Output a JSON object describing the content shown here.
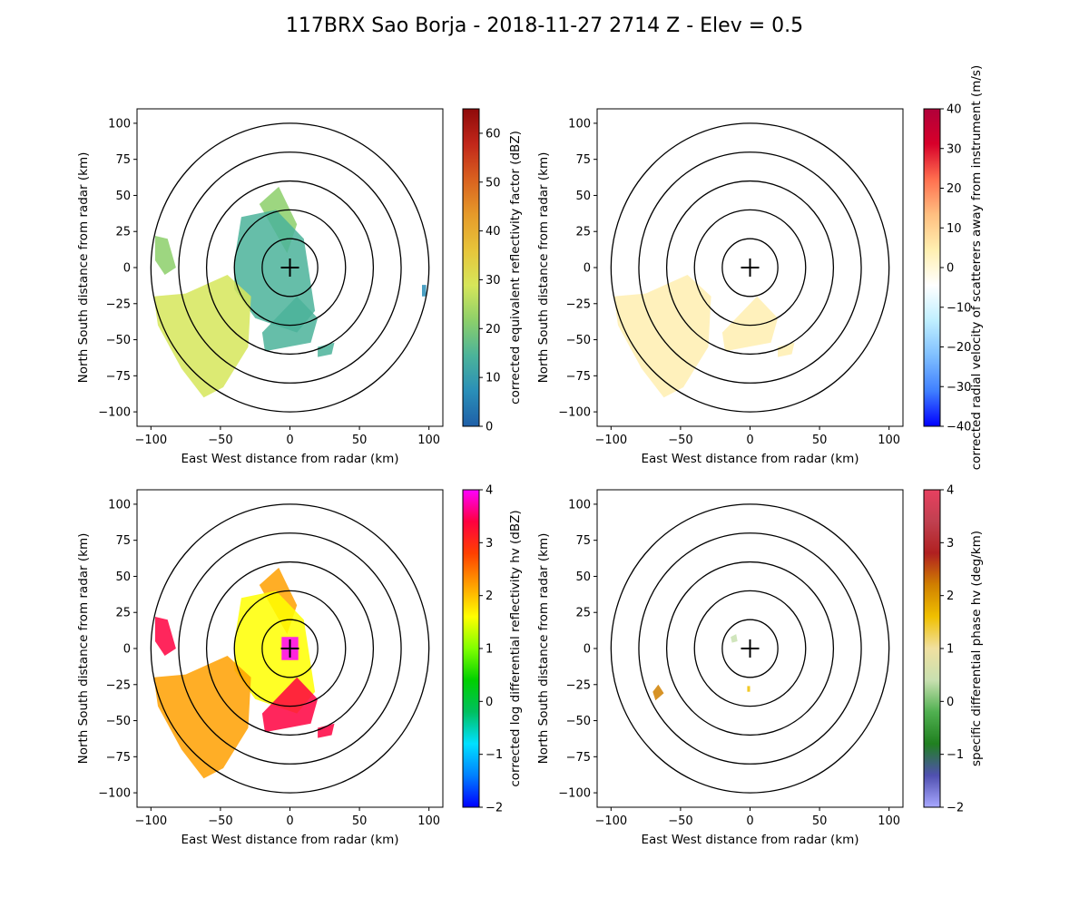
{
  "title": "117BRX Sao Borja - 2018-11-27 2714 Z -  Elev = 0.5",
  "chart_data": [
    {
      "type": "heatmap",
      "panel": "top-left",
      "xlabel": "East West distance from radar (km)",
      "ylabel": "North South distance from radar (km)",
      "xlim": [
        -110,
        110
      ],
      "ylim": [
        -110,
        110
      ],
      "xticks": [
        -100,
        -50,
        0,
        50,
        100
      ],
      "yticks": [
        -100,
        -75,
        -50,
        -25,
        0,
        25,
        50,
        75,
        100
      ],
      "range_rings_km": [
        20,
        40,
        60,
        80,
        100
      ],
      "radar_marker": [
        0,
        0
      ],
      "colorbar": {
        "label": "corrected equivalent reflectivity factor (dBZ)",
        "min": 0,
        "max": 65,
        "ticks": [
          0,
          10,
          20,
          30,
          40,
          50,
          60
        ],
        "colors": [
          "#1f5fa8",
          "#2a8fb8",
          "#4bb39a",
          "#8ccf6a",
          "#d6e65a",
          "#e7c43a",
          "#e59a2a",
          "#d9611f",
          "#c1271a",
          "#8e0a0a"
        ]
      },
      "echoes": [
        {
          "name": "northeast-storm-arm",
          "value": 20,
          "points": [
            [
              -5,
              15
            ],
            [
              -22,
              44
            ],
            [
              -8,
              56
            ],
            [
              5,
              30
            ],
            [
              -2,
              10
            ]
          ]
        },
        {
          "name": "central-echo",
          "value": 18,
          "points": [
            [
              -40,
              5
            ],
            [
              -35,
              35
            ],
            [
              -10,
              40
            ],
            [
              10,
              20
            ],
            [
              18,
              -30
            ],
            [
              5,
              -45
            ],
            [
              -25,
              -35
            ],
            [
              -40,
              -15
            ]
          ]
        },
        {
          "name": "southeast-tail",
          "value": 15,
          "points": [
            [
              5,
              -20
            ],
            [
              20,
              -35
            ],
            [
              15,
              -52
            ],
            [
              -18,
              -58
            ],
            [
              -20,
              -45
            ]
          ]
        },
        {
          "name": "southwest-band",
          "value": 28,
          "points": [
            [
              -98,
              -20
            ],
            [
              -75,
              -18
            ],
            [
              -45,
              -5
            ],
            [
              -28,
              -20
            ],
            [
              -30,
              -55
            ],
            [
              -48,
              -83
            ],
            [
              -62,
              -90
            ],
            [
              -78,
              -70
            ],
            [
              -95,
              -40
            ]
          ]
        },
        {
          "name": "west-cells",
          "value": 24,
          "points": [
            [
              -97,
              22
            ],
            [
              -88,
              20
            ],
            [
              -82,
              0
            ],
            [
              -90,
              -5
            ],
            [
              -97,
              5
            ]
          ]
        },
        {
          "name": "east-fragment",
          "value": 12,
          "points": [
            [
              20,
              -55
            ],
            [
              32,
              -52
            ],
            [
              30,
              -60
            ],
            [
              20,
              -62
            ]
          ]
        },
        {
          "name": "far-east-fragment",
          "value": 10,
          "points": [
            [
              95,
              -12
            ],
            [
              98,
              -12
            ],
            [
              98,
              -20
            ],
            [
              95,
              -20
            ]
          ]
        }
      ]
    },
    {
      "type": "heatmap",
      "panel": "top-right",
      "xlabel": "East West distance from radar (km)",
      "ylabel": "North South distance from radar (km)",
      "xlim": [
        -110,
        110
      ],
      "ylim": [
        -110,
        110
      ],
      "xticks": [
        -100,
        -50,
        0,
        50,
        100
      ],
      "yticks": [
        -100,
        -75,
        -50,
        -25,
        0,
        25,
        50,
        75,
        100
      ],
      "range_rings_km": [
        20,
        40,
        60,
        80,
        100
      ],
      "radar_marker": [
        0,
        0
      ],
      "colorbar": {
        "label": "corrected radial velocity of scatterers away from instrument (m/s)",
        "min": -40,
        "max": 40,
        "ticks": [
          -40,
          -30,
          -20,
          -10,
          0,
          10,
          20,
          30,
          40
        ],
        "colors": [
          "#0000ff",
          "#3f7fff",
          "#7fbfff",
          "#bfefff",
          "#ffffff",
          "#ffefb0",
          "#ffbf80",
          "#ff6f4f",
          "#d7002a",
          "#b0003a"
        ]
      },
      "echoes": [
        {
          "name": "northeast-storm-arm",
          "value": -5,
          "points": [
            [
              -5,
              15
            ],
            [
              -22,
              44
            ],
            [
              -8,
              56
            ],
            [
              5,
              30
            ],
            [
              -2,
              10
            ]
          ]
        },
        {
          "name": "central-echo",
          "value": -6,
          "points": [
            [
              -40,
              5
            ],
            [
              -35,
              35
            ],
            [
              -10,
              40
            ],
            [
              10,
              20
            ],
            [
              18,
              -30
            ],
            [
              5,
              -45
            ],
            [
              -25,
              -35
            ],
            [
              -40,
              -15
            ]
          ]
        },
        {
          "name": "southeast-tail",
          "value": 4,
          "points": [
            [
              5,
              -20
            ],
            [
              20,
              -35
            ],
            [
              15,
              -52
            ],
            [
              -18,
              -58
            ],
            [
              -20,
              -45
            ]
          ]
        },
        {
          "name": "southwest-band",
          "value": 5,
          "points": [
            [
              -98,
              -20
            ],
            [
              -75,
              -18
            ],
            [
              -45,
              -5
            ],
            [
              -28,
              -20
            ],
            [
              -30,
              -55
            ],
            [
              -48,
              -83
            ],
            [
              -62,
              -90
            ],
            [
              -78,
              -70
            ],
            [
              -95,
              -40
            ]
          ]
        },
        {
          "name": "west-cells",
          "value": -4,
          "points": [
            [
              -97,
              22
            ],
            [
              -88,
              20
            ],
            [
              -82,
              0
            ],
            [
              -90,
              -5
            ],
            [
              -97,
              5
            ]
          ]
        },
        {
          "name": "east-fragment",
          "value": 3,
          "points": [
            [
              20,
              -55
            ],
            [
              32,
              -52
            ],
            [
              30,
              -60
            ],
            [
              20,
              -62
            ]
          ]
        },
        {
          "name": "far-east-fragment",
          "value": -3,
          "points": [
            [
              95,
              -12
            ],
            [
              98,
              -12
            ],
            [
              98,
              -20
            ],
            [
              95,
              -20
            ]
          ]
        }
      ]
    },
    {
      "type": "heatmap",
      "panel": "bottom-left",
      "xlabel": "East West distance from radar (km)",
      "ylabel": "North South distance from radar (km)",
      "xlim": [
        -110,
        110
      ],
      "ylim": [
        -110,
        110
      ],
      "xticks": [
        -100,
        -50,
        0,
        50,
        100
      ],
      "yticks": [
        -100,
        -75,
        -50,
        -25,
        0,
        25,
        50,
        75,
        100
      ],
      "range_rings_km": [
        20,
        40,
        60,
        80,
        100
      ],
      "radar_marker": [
        0,
        0
      ],
      "colorbar": {
        "label": "corrected log differential reflectivity hv (dBZ)",
        "min": -2,
        "max": 4,
        "ticks": [
          -2,
          -1,
          0,
          1,
          2,
          3,
          4
        ],
        "colors": [
          "#0000ff",
          "#0080ff",
          "#00e0ff",
          "#00c060",
          "#00d000",
          "#80ff00",
          "#ffff00",
          "#ffa000",
          "#ff4000",
          "#ff0040",
          "#ff00ff"
        ]
      },
      "echoes": [
        {
          "name": "northeast-storm-arm",
          "value": 2.0,
          "points": [
            [
              -5,
              15
            ],
            [
              -22,
              44
            ],
            [
              -8,
              56
            ],
            [
              5,
              30
            ],
            [
              -2,
              10
            ]
          ]
        },
        {
          "name": "central-echo",
          "value": 1.4,
          "points": [
            [
              -40,
              5
            ],
            [
              -35,
              35
            ],
            [
              -10,
              40
            ],
            [
              10,
              20
            ],
            [
              18,
              -30
            ],
            [
              5,
              -45
            ],
            [
              -25,
              -35
            ],
            [
              -40,
              -15
            ]
          ]
        },
        {
          "name": "near-radar-clutter",
          "value": 3.8,
          "points": [
            [
              -6,
              8
            ],
            [
              6,
              8
            ],
            [
              6,
              -8
            ],
            [
              -6,
              -8
            ]
          ]
        },
        {
          "name": "southeast-tail",
          "value": 3.2,
          "points": [
            [
              5,
              -20
            ],
            [
              20,
              -35
            ],
            [
              15,
              -52
            ],
            [
              -18,
              -58
            ],
            [
              -20,
              -45
            ]
          ]
        },
        {
          "name": "southwest-band",
          "value": 2.4,
          "points": [
            [
              -98,
              -20
            ],
            [
              -75,
              -18
            ],
            [
              -45,
              -5
            ],
            [
              -28,
              -20
            ],
            [
              -30,
              -55
            ],
            [
              -48,
              -83
            ],
            [
              -62,
              -90
            ],
            [
              -78,
              -70
            ],
            [
              -95,
              -40
            ]
          ]
        },
        {
          "name": "west-cells",
          "value": 3.5,
          "points": [
            [
              -97,
              22
            ],
            [
              -88,
              20
            ],
            [
              -82,
              0
            ],
            [
              -90,
              -5
            ],
            [
              -97,
              5
            ]
          ]
        },
        {
          "name": "east-fragment",
          "value": 3.6,
          "points": [
            [
              20,
              -55
            ],
            [
              32,
              -52
            ],
            [
              30,
              -60
            ],
            [
              20,
              -62
            ]
          ]
        }
      ]
    },
    {
      "type": "heatmap",
      "panel": "bottom-right",
      "xlabel": "East West distance from radar (km)",
      "ylabel": "North South distance from radar (km)",
      "xlim": [
        -110,
        110
      ],
      "ylim": [
        -110,
        110
      ],
      "xticks": [
        -100,
        -50,
        0,
        50,
        100
      ],
      "yticks": [
        -100,
        -75,
        -50,
        -25,
        0,
        25,
        50,
        75,
        100
      ],
      "range_rings_km": [
        20,
        40,
        60,
        80,
        100
      ],
      "radar_marker": [
        0,
        0
      ],
      "colorbar": {
        "label": "specific differential phase hv (deg/km)",
        "min": -2,
        "max": 4,
        "ticks": [
          -2,
          -1,
          0,
          1,
          2,
          3,
          4
        ],
        "colors": [
          "#a8a8ff",
          "#5050b0",
          "#208020",
          "#50b050",
          "#c8e0b0",
          "#f0e0a0",
          "#f0c000",
          "#d08000",
          "#b02020",
          "#c04050",
          "#e84060"
        ]
      },
      "echoes": [
        {
          "name": "small-cell-near-radar",
          "value": 0.3,
          "points": [
            [
              -14,
              8
            ],
            [
              -10,
              10
            ],
            [
              -9,
              5
            ],
            [
              -13,
              4
            ]
          ]
        },
        {
          "name": "southwest-cell",
          "value": 2.3,
          "points": [
            [
              -70,
              -30
            ],
            [
              -66,
              -25
            ],
            [
              -62,
              -31
            ],
            [
              -68,
              -36
            ]
          ]
        },
        {
          "name": "south-speck",
          "value": 1.8,
          "points": [
            [
              -2,
              -26
            ],
            [
              0,
              -26
            ],
            [
              0,
              -30
            ],
            [
              -2,
              -30
            ]
          ]
        }
      ]
    }
  ]
}
